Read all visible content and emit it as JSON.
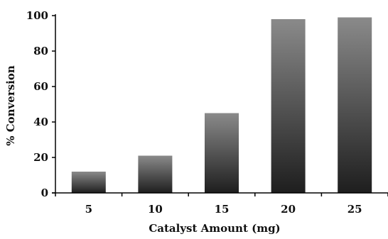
{
  "chart_data": {
    "type": "bar",
    "categories": [
      "5",
      "10",
      "15",
      "20",
      "25"
    ],
    "values": [
      12,
      21,
      45,
      98,
      99
    ],
    "title": "",
    "xlabel": "Catalyst Amount (mg)",
    "ylabel": "% Conversion",
    "ylim": [
      0,
      100
    ],
    "yticks": [
      "0",
      "20",
      "40",
      "60",
      "80",
      "100"
    ],
    "grid": false,
    "legend": "none",
    "bar_color_top": "#8a8a8a",
    "bar_color_bottom": "#1e1e1e",
    "axis_color": "#000000"
  }
}
